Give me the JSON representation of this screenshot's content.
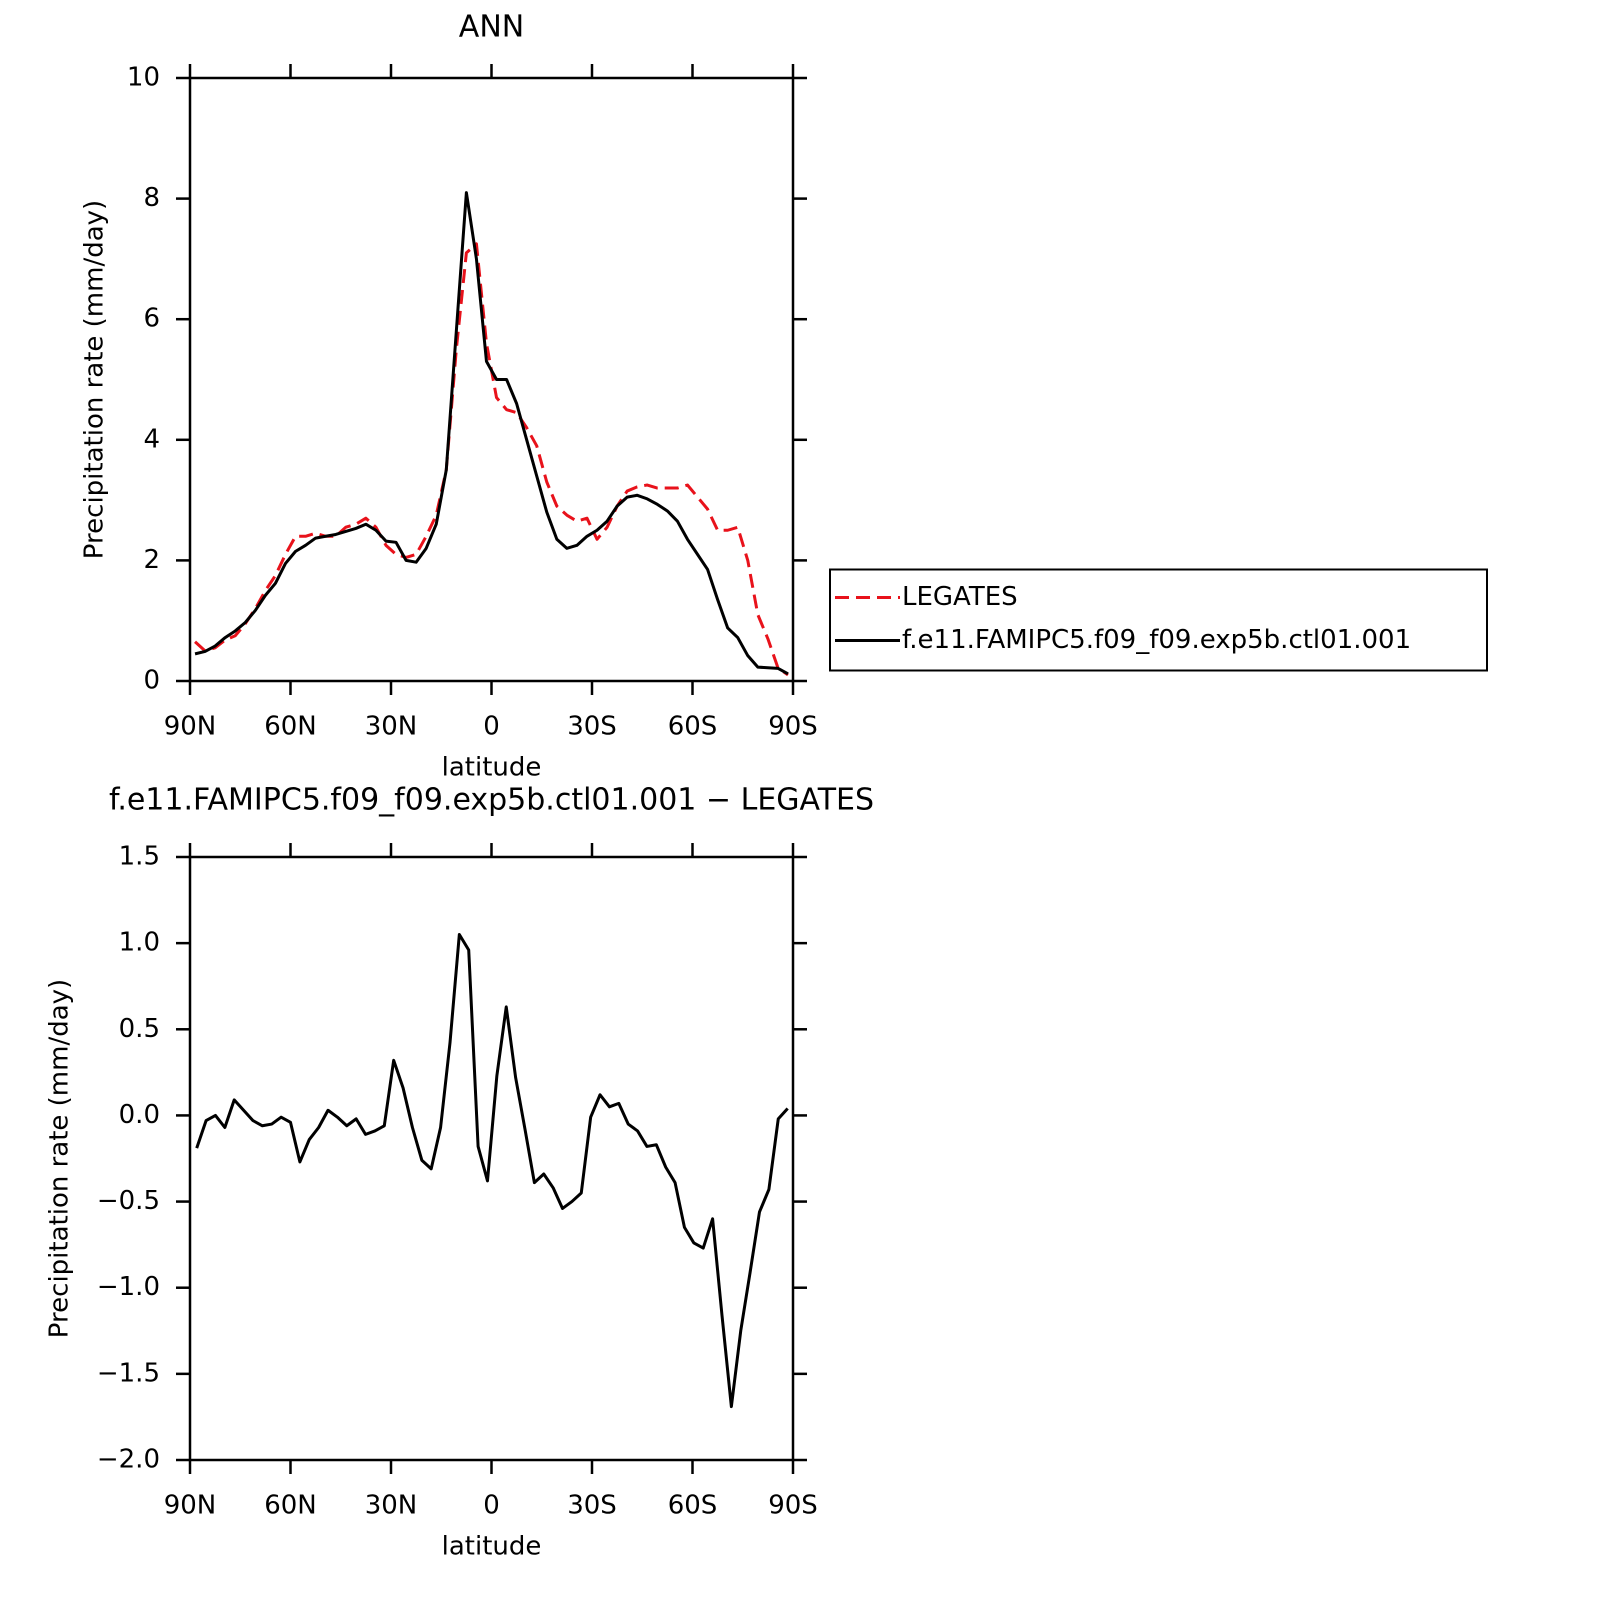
{
  "chart_data": [
    {
      "type": "line",
      "title": "ANN",
      "xlabel": "latitude",
      "ylabel": "Precipitation rate (mm/day)",
      "x": [
        88.5,
        85.5,
        82.5,
        79.5,
        76.5,
        73.5,
        70.5,
        67.5,
        64.5,
        61.5,
        58.5,
        55.5,
        52.5,
        49.5,
        46.5,
        43.5,
        40.5,
        37.5,
        34.5,
        31.5,
        28.5,
        25.5,
        22.5,
        19.5,
        16.5,
        13.5,
        10.5,
        7.5,
        4.5,
        1.5,
        -1.5,
        -4.5,
        -7.5,
        -10.5,
        -13.5,
        -16.5,
        -19.5,
        -22.5,
        -25.5,
        -28.5,
        -31.5,
        -34.5,
        -37.5,
        -40.5,
        -43.5,
        -46.5,
        -49.5,
        -52.5,
        -55.5,
        -58.5,
        -61.5,
        -64.5,
        -67.5,
        -70.5,
        -73.5,
        -76.5,
        -79.5,
        -82.5,
        -85.5,
        -88.5
      ],
      "series": [
        {
          "name": "LEGATES",
          "color": "#e8121b",
          "dashed": true,
          "values": [
            0.65,
            0.5,
            0.55,
            0.68,
            0.75,
            0.95,
            1.2,
            1.5,
            1.75,
            2.1,
            2.4,
            2.4,
            2.45,
            2.4,
            2.4,
            2.55,
            2.6,
            2.7,
            2.55,
            2.25,
            2.1,
            2.05,
            2.1,
            2.4,
            2.75,
            3.5,
            5.5,
            7.1,
            7.25,
            5.6,
            4.7,
            4.5,
            4.45,
            4.2,
            3.9,
            3.3,
            2.9,
            2.75,
            2.65,
            2.7,
            2.35,
            2.55,
            2.9,
            3.15,
            3.22,
            3.25,
            3.2,
            3.2,
            3.2,
            3.25,
            3.05,
            2.85,
            2.5,
            2.5,
            2.55,
            2.0,
            1.1,
            0.7,
            0.22,
            0.1
          ]
        },
        {
          "name": "f.e11.FAMIPC5.f09_f09.exp5b.ctl01.001",
          "color": "#000000",
          "dashed": false,
          "values": [
            0.45,
            0.49,
            0.58,
            0.72,
            0.83,
            0.97,
            1.17,
            1.42,
            1.62,
            1.95,
            2.15,
            2.25,
            2.37,
            2.4,
            2.43,
            2.48,
            2.53,
            2.6,
            2.5,
            2.32,
            2.3,
            2.0,
            1.97,
            2.2,
            2.6,
            3.5,
            5.8,
            8.1,
            7.0,
            5.3,
            5.0,
            5.0,
            4.6,
            4.0,
            3.4,
            2.8,
            2.35,
            2.2,
            2.25,
            2.4,
            2.5,
            2.65,
            2.9,
            3.05,
            3.08,
            3.02,
            2.93,
            2.82,
            2.65,
            2.35,
            2.1,
            1.85,
            1.35,
            0.88,
            0.72,
            0.42,
            0.23,
            0.22,
            0.21,
            0.12
          ]
        }
      ],
      "xlim": [
        90,
        -90
      ],
      "xticks": [
        {
          "value": 90,
          "label": "90N"
        },
        {
          "value": 60,
          "label": "60N"
        },
        {
          "value": 30,
          "label": "30N"
        },
        0,
        {
          "value": -30,
          "label": "30S"
        },
        {
          "value": -60,
          "label": "60S"
        },
        {
          "value": -90,
          "label": "90S"
        }
      ],
      "ylim": [
        0,
        10
      ],
      "yticks": [
        0,
        2,
        4,
        6,
        8,
        10
      ],
      "legend": "right"
    },
    {
      "type": "line",
      "title": "f.e11.FAMIPC5.f09_f09.exp5b.ctl01.001 − LEGATES",
      "xlabel": "latitude",
      "ylabel": "Precipitation rate (mm/day)",
      "x": [
        88.0,
        85.2,
        82.4,
        79.6,
        76.8,
        74.0,
        71.2,
        68.4,
        65.6,
        62.8,
        60.0,
        57.2,
        54.4,
        51.6,
        48.8,
        46.0,
        43.2,
        40.4,
        37.6,
        34.8,
        32.0,
        29.2,
        26.4,
        23.6,
        20.8,
        18.0,
        15.2,
        12.4,
        9.6,
        6.8,
        4.0,
        1.2,
        -1.6,
        -4.4,
        -7.2,
        -10.0,
        -12.8,
        -15.6,
        -18.4,
        -21.2,
        -24.0,
        -26.8,
        -29.6,
        -32.4,
        -35.2,
        -38.0,
        -40.8,
        -43.6,
        -46.4,
        -49.2,
        -52.0,
        -54.8,
        -57.6,
        -60.4,
        -63.2,
        -66.0,
        -68.8,
        -71.6,
        -74.4,
        -77.2,
        -80.0,
        -82.8,
        -85.6,
        -88.4
      ],
      "values": [
        -0.19,
        -0.03,
        0.0,
        -0.07,
        0.09,
        0.03,
        -0.03,
        -0.06,
        -0.05,
        -0.01,
        -0.04,
        -0.27,
        -0.14,
        -0.07,
        0.03,
        -0.01,
        -0.06,
        -0.02,
        -0.11,
        -0.09,
        -0.06,
        0.32,
        0.16,
        -0.07,
        -0.26,
        -0.31,
        -0.07,
        0.42,
        1.05,
        0.96,
        -0.18,
        -0.38,
        0.23,
        0.63,
        0.22,
        -0.08,
        -0.39,
        -0.34,
        -0.42,
        -0.54,
        -0.5,
        -0.45,
        -0.01,
        0.12,
        0.05,
        0.07,
        -0.05,
        -0.09,
        -0.18,
        -0.17,
        -0.3,
        -0.39,
        -0.65,
        -0.74,
        -0.77,
        -0.6,
        -1.16,
        -1.69,
        -1.25,
        -0.91,
        -0.56,
        -0.43,
        -0.02,
        0.04
      ],
      "color": "#000000",
      "xlim": [
        90,
        -90
      ],
      "xticks": [
        {
          "value": 90,
          "label": "90N"
        },
        {
          "value": 60,
          "label": "60N"
        },
        {
          "value": 30,
          "label": "30N"
        },
        0,
        {
          "value": -30,
          "label": "30S"
        },
        {
          "value": -60,
          "label": "60S"
        },
        {
          "value": -90,
          "label": "90S"
        }
      ],
      "ylim": [
        -2.0,
        1.5
      ],
      "yticks": [
        {
          "value": -2.0,
          "label": "−2.0"
        },
        {
          "value": -1.5,
          "label": "−1.5"
        },
        {
          "value": -1.0,
          "label": "−1.0"
        },
        {
          "value": -0.5,
          "label": "−0.5"
        },
        {
          "value": 0.0,
          "label": "0.0"
        },
        0.5,
        {
          "value": 1.0,
          "label": "1.0"
        },
        1.5
      ]
    }
  ]
}
